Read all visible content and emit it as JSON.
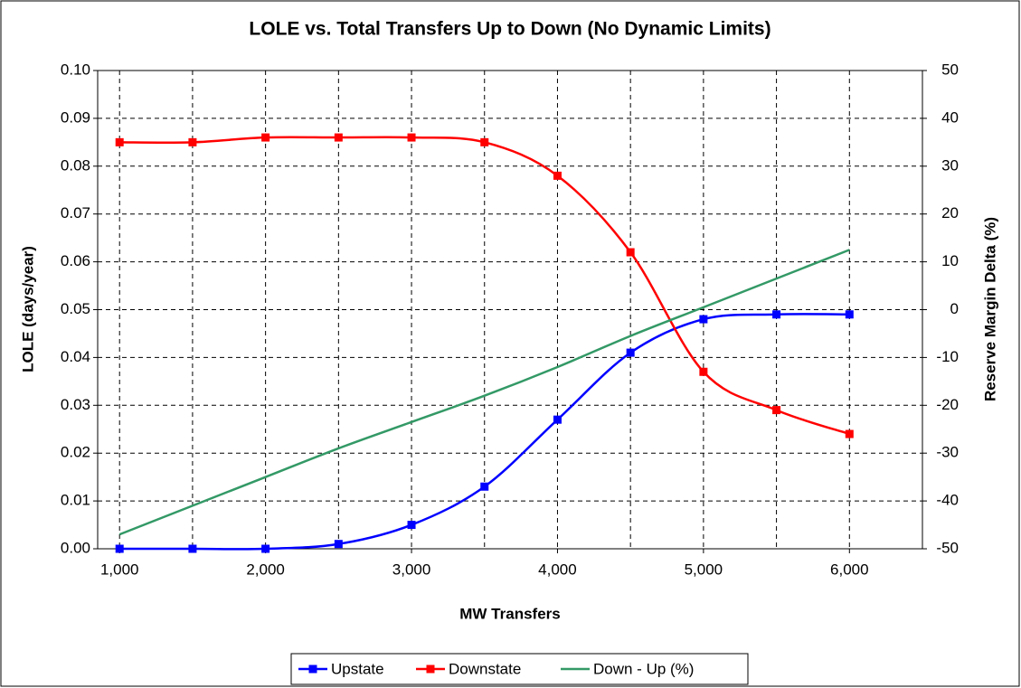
{
  "chart_data": {
    "type": "line",
    "title": "LOLE vs. Total Transfers Up to Down (No Dynamic Limits)",
    "x_label": "MW Transfers",
    "y_label": "LOLE (days/year)",
    "y2_label": "Reserve Margin Delta (%)",
    "x": [
      1000,
      1500,
      2000,
      2500,
      3000,
      3500,
      4000,
      4500,
      5000,
      5500,
      6000
    ],
    "series": [
      {
        "name": "Upstate",
        "color": "#0000ff",
        "marker": true,
        "values": [
          0,
          0,
          0,
          0.001,
          0.005,
          0.013,
          0.027,
          0.041,
          0.048,
          0.049,
          0.049
        ]
      },
      {
        "name": "Downstate",
        "color": "#ff0000",
        "marker": true,
        "values": [
          0.085,
          0.085,
          0.086,
          0.086,
          0.086,
          0.085,
          0.078,
          0.062,
          0.037,
          0.029,
          0.024
        ]
      },
      {
        "name": "Down - Up (%)",
        "color": "#339966",
        "marker": false,
        "axis": "y2",
        "values": [
          -47,
          -41,
          -35,
          -29,
          -23.5,
          -18,
          -12,
          -5.5,
          0.5,
          6.5,
          12.5
        ]
      }
    ],
    "xlim": [
      850,
      6500
    ],
    "xticks": [
      {
        "value": 1000,
        "label": "1,000"
      },
      {
        "value": 2000,
        "label": "2,000"
      },
      {
        "value": 3000,
        "label": "3,000"
      },
      {
        "value": 4000,
        "label": "4,000"
      },
      {
        "value": 5000,
        "label": "5,000"
      },
      {
        "value": 6000,
        "label": "6,000"
      }
    ],
    "x_minor_grid": [
      1500,
      2500,
      3500,
      4500,
      5500,
      6500
    ],
    "ylim": [
      0,
      0.1
    ],
    "yticks": [
      {
        "value": 0,
        "label": "0.00"
      },
      {
        "value": 0.01,
        "label": "0.01"
      },
      {
        "value": 0.02,
        "label": "0.02"
      },
      {
        "value": 0.03,
        "label": "0.03"
      },
      {
        "value": 0.04,
        "label": "0.04"
      },
      {
        "value": 0.05,
        "label": "0.05"
      },
      {
        "value": 0.06,
        "label": "0.06"
      },
      {
        "value": 0.07,
        "label": "0.07"
      },
      {
        "value": 0.08,
        "label": "0.08"
      },
      {
        "value": 0.09,
        "label": "0.09"
      },
      {
        "value": 0.1,
        "label": "0.10"
      }
    ],
    "y2lim": [
      -50,
      50
    ],
    "y2ticks": [
      -50,
      -40,
      -30,
      -20,
      -10,
      0,
      10,
      20,
      30,
      40,
      50
    ],
    "grid": true,
    "smooth": true,
    "legend": "bottom"
  }
}
